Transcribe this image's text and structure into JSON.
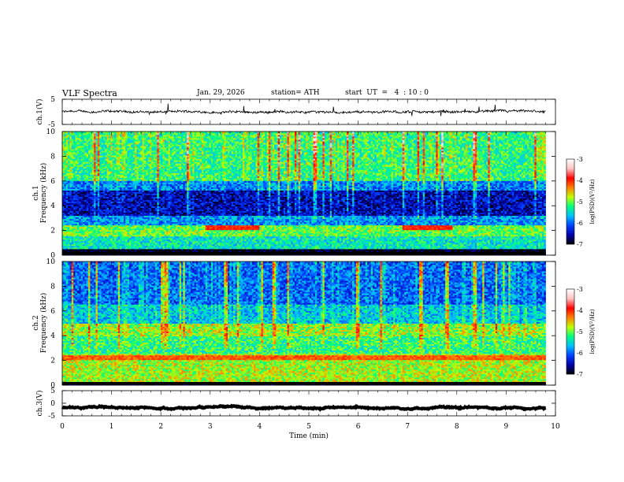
{
  "header": {
    "title": "VLF Spectra",
    "date": "Jan. 29, 2026",
    "station": "station= ATH",
    "start": "start  UT  =   4  : 10 : 0"
  },
  "chart_data": [
    {
      "type": "line",
      "name": "ch1-waveform",
      "ylabel": "ch.1(V)",
      "ylim": [
        -5,
        5
      ],
      "yticks": [
        5,
        -5
      ],
      "xlim": [
        0,
        10
      ],
      "approx_level": 0,
      "noise_amplitude": 0.8
    },
    {
      "type": "heatmap",
      "name": "ch1-spectrogram",
      "ylabel": "ch.1\nFrequency (kHz)",
      "ylabel_lines": [
        "ch.1",
        "Frequency (kHz)"
      ],
      "ylim": [
        0,
        10
      ],
      "yticks": [
        0,
        2,
        4,
        6,
        8,
        10
      ],
      "xlim": [
        0,
        10
      ],
      "colorbar": {
        "label": "log(PSD)(V²/Hz)",
        "ticks": [
          -3,
          -4,
          -5,
          -6,
          -7
        ],
        "range": [
          -7,
          -3
        ]
      },
      "bands": [
        {
          "freq": [
            0.0,
            0.5
          ],
          "level": -7.0
        },
        {
          "freq": [
            0.5,
            1.5
          ],
          "level": -5.4
        },
        {
          "freq": [
            1.5,
            2.5
          ],
          "level": -5.0
        },
        {
          "freq": [
            2.5,
            3.2
          ],
          "level": -5.8
        },
        {
          "freq": [
            3.2,
            5.2
          ],
          "level": -6.5
        },
        {
          "freq": [
            5.2,
            6.0
          ],
          "level": -5.9
        },
        {
          "freq": [
            6.0,
            10.0
          ],
          "level": -5.2
        }
      ],
      "tones": [
        {
          "freq": 2.2,
          "t": [
            2.9,
            4.0
          ],
          "level": -4.0
        },
        {
          "freq": 2.2,
          "t": [
            6.9,
            7.9
          ],
          "level": -4.0
        }
      ]
    },
    {
      "type": "heatmap",
      "name": "ch2-spectrogram",
      "ylabel": "ch.2\nFrequency (kHz)",
      "ylabel_lines": [
        "ch.2",
        "Frequency (kHz)"
      ],
      "ylim": [
        0,
        10
      ],
      "yticks": [
        0,
        2,
        4,
        6,
        8,
        10
      ],
      "xlim": [
        0,
        10
      ],
      "colorbar": {
        "label": "log(PSD)(V²/Hz)",
        "ticks": [
          -3,
          -4,
          -5,
          -6,
          -7
        ],
        "range": [
          -7,
          -3
        ]
      },
      "bands": [
        {
          "freq": [
            0.0,
            0.3
          ],
          "level": -7.0
        },
        {
          "freq": [
            0.3,
            2.6
          ],
          "level": -4.8
        },
        {
          "freq": [
            2.6,
            4.0
          ],
          "level": -5.2
        },
        {
          "freq": [
            4.0,
            5.0
          ],
          "level": -4.9
        },
        {
          "freq": [
            5.0,
            6.5
          ],
          "level": -5.6
        },
        {
          "freq": [
            6.5,
            10.0
          ],
          "level": -6.0
        }
      ],
      "tones": [
        {
          "freq": 2.2,
          "t": [
            0,
            10
          ],
          "level": -4.2
        }
      ]
    },
    {
      "type": "line",
      "name": "ch3-waveform",
      "ylabel": "ch.3(V)",
      "ylim": [
        -5,
        5
      ],
      "yticks": [
        5,
        0,
        -5
      ],
      "xlim": [
        0,
        10
      ],
      "approx_level": -1.8,
      "noise_amplitude": 0.3
    }
  ],
  "xaxis": {
    "label": "Time (min)",
    "ticks": [
      0,
      1,
      2,
      3,
      4,
      5,
      6,
      7,
      8,
      9,
      10
    ],
    "data_end": 9.8
  },
  "colors": {
    "colormap": [
      "#000000",
      "#0000aa",
      "#0040ff",
      "#00c0ff",
      "#00ff80",
      "#c0ff00",
      "#ff8000",
      "#ff0000",
      "#ffc0c0",
      "#ffffff"
    ]
  }
}
